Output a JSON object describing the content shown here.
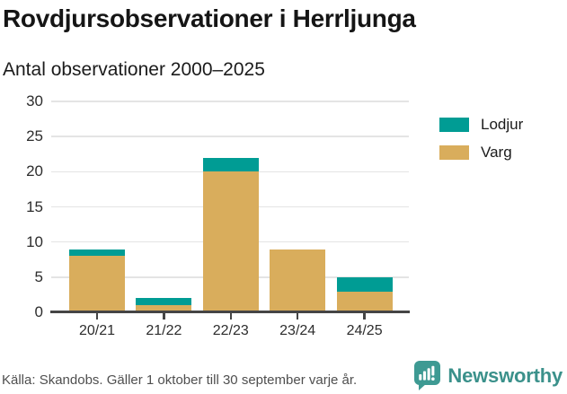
{
  "header": {
    "title": "Rovdjursobservationer i Herrljunga",
    "subtitle": "Antal observationer 2000–2025"
  },
  "chart_data": {
    "type": "bar",
    "stacked": true,
    "title": "Rovdjursobservationer i Herrljunga",
    "subtitle": "Antal observationer 2000–2025",
    "categories": [
      "20/21",
      "21/22",
      "22/23",
      "23/24",
      "24/25"
    ],
    "series": [
      {
        "name": "Varg",
        "color": "#D9AD5C",
        "values": [
          8,
          1,
          20,
          9,
          3
        ]
      },
      {
        "name": "Lodjur",
        "color": "#009C94",
        "values": [
          1,
          1,
          2,
          0,
          2
        ]
      }
    ],
    "totals": [
      9,
      2,
      22,
      9,
      5
    ],
    "xlabel": "",
    "ylabel": "",
    "ylim": [
      0,
      30
    ],
    "yticks": [
      0,
      5,
      10,
      15,
      20,
      25,
      30
    ],
    "grid": true,
    "legend_position": "right"
  },
  "legend": {
    "items": [
      {
        "label": "Lodjur",
        "color": "#009C94"
      },
      {
        "label": "Varg",
        "color": "#D9AD5C"
      }
    ]
  },
  "footer": {
    "source": "Källa: Skandobs. Gäller 1 oktober till 30 september varje år.",
    "brand": "Newsworthy",
    "brand_color": "#3B918B"
  },
  "colors": {
    "lodjur": "#009C94",
    "varg": "#D9AD5C",
    "gridline": "#E4E4E4",
    "axis": "#454545",
    "title_text": "#151515",
    "muted_text": "#4f4f4f"
  }
}
